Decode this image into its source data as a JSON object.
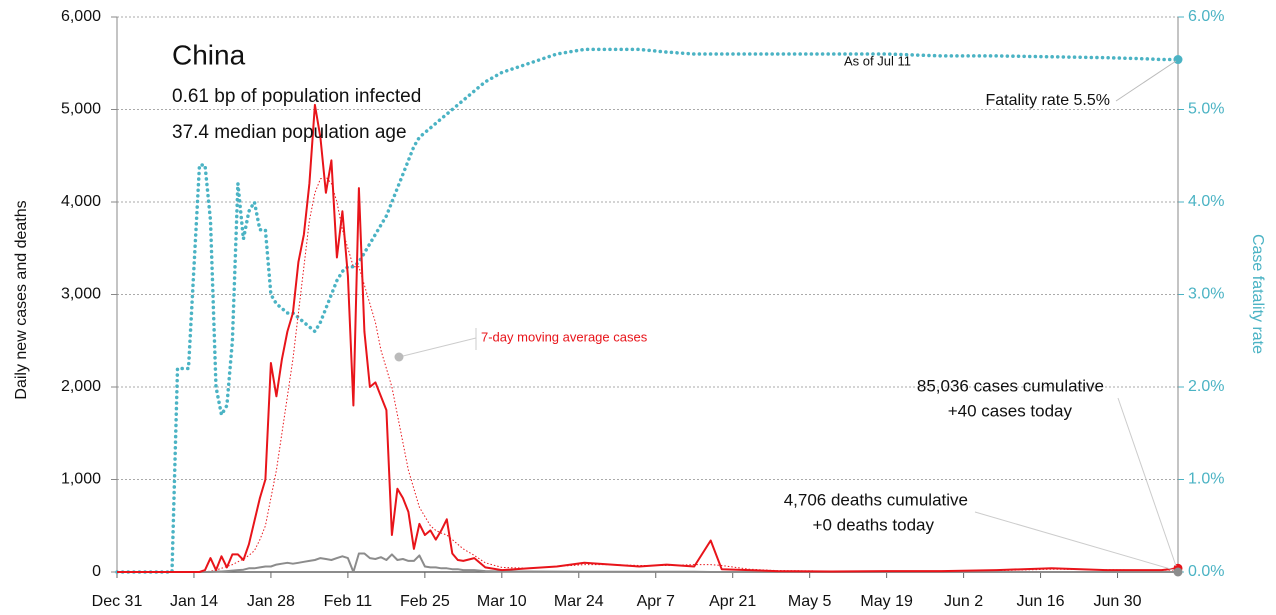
{
  "chart_data": {
    "type": "line",
    "title": "China",
    "annotations": [
      "0.61 bp of population infected",
      "37.4 median population age",
      "As of Jul 11",
      "Fatality rate 5.5%",
      "7-day moving average cases",
      "85,036 cases cumulative",
      "+40 cases today",
      "4,706 deaths cumulative",
      "+0 deaths today"
    ],
    "ylabel": "Daily new cases and deaths",
    "y2label": "Case fatality rate",
    "x": [
      0,
      5,
      10,
      11,
      13,
      15,
      16,
      17,
      18,
      19,
      20,
      21,
      22,
      23,
      24,
      25,
      26,
      27,
      28,
      29,
      30,
      31,
      32,
      33,
      34,
      35,
      36,
      37,
      38,
      39,
      40,
      41,
      42,
      43,
      44,
      45,
      46,
      47,
      48,
      49,
      50,
      51,
      52,
      53,
      54,
      55,
      56,
      57,
      58,
      59,
      60,
      61,
      62,
      63,
      65,
      67,
      70,
      75,
      80,
      85,
      90,
      95,
      100,
      105,
      108,
      110,
      115,
      120,
      130,
      140,
      150,
      160,
      170,
      180,
      186,
      190,
      193
    ],
    "series": [
      {
        "color": "#e8141a",
        "style": "solid",
        "values": [
          0,
          0,
          0,
          0,
          0,
          0,
          20,
          150,
          20,
          170,
          50,
          190,
          190,
          130,
          300,
          550,
          800,
          1000,
          2260,
          1900,
          2300,
          2600,
          2800,
          3350,
          3650,
          4200,
          5050,
          4700,
          4100,
          4450,
          3400,
          3900,
          3200,
          1800,
          4150,
          2600,
          2000,
          2050,
          1900,
          1750,
          400,
          900,
          800,
          650,
          250,
          520,
          400,
          450,
          350,
          450,
          570,
          200,
          130,
          120,
          150,
          50,
          20,
          40,
          60,
          100,
          80,
          60,
          80,
          60,
          340,
          30,
          20,
          10,
          5,
          10,
          10,
          20,
          40,
          20,
          20,
          20,
          40
        ]
      },
      {
        "color": "#e8141a",
        "style": "dotted",
        "values": [
          0,
          0,
          0,
          0,
          0,
          0,
          0,
          10,
          20,
          40,
          60,
          80,
          110,
          140,
          180,
          230,
          350,
          500,
          800,
          1100,
          1500,
          1900,
          2300,
          2800,
          3300,
          3800,
          4100,
          4250,
          4270,
          4200,
          4000,
          3700,
          3500,
          3300,
          3300,
          3100,
          2900,
          2700,
          2400,
          2200,
          2000,
          1700,
          1400,
          1100,
          900,
          700,
          600,
          500,
          450,
          420,
          400,
          350,
          300,
          250,
          180,
          100,
          50,
          40,
          60,
          80,
          80,
          70,
          70,
          80,
          80,
          70,
          30,
          15,
          10,
          10,
          10,
          15,
          30,
          25,
          20,
          20,
          20
        ]
      },
      {
        "color": "#8c8c8c",
        "style": "solid",
        "values": [
          0,
          0,
          0,
          0,
          0,
          0,
          0,
          0,
          5,
          5,
          10,
          15,
          20,
          25,
          40,
          40,
          50,
          60,
          60,
          80,
          90,
          100,
          90,
          100,
          110,
          120,
          130,
          150,
          140,
          130,
          150,
          170,
          150,
          0,
          200,
          200,
          150,
          140,
          160,
          130,
          190,
          130,
          140,
          120,
          120,
          180,
          60,
          50,
          50,
          40,
          40,
          30,
          30,
          20,
          20,
          10,
          5,
          5,
          4,
          3,
          2,
          2,
          2,
          2,
          0,
          0,
          0,
          0,
          0,
          0,
          0,
          0,
          0,
          0,
          0,
          0,
          0
        ]
      },
      {
        "color": "#4bb3c4",
        "style": "dots",
        "axis": "y2",
        "values": [
          0,
          0,
          0,
          2.2,
          2.2,
          4.4,
          4.4,
          3.8,
          2.0,
          1.7,
          1.8,
          2.5,
          4.2,
          3.6,
          3.9,
          4.0,
          3.7,
          3.7,
          3.0,
          2.9,
          2.85,
          2.8,
          2.8,
          2.75,
          2.7,
          2.65,
          2.6,
          2.7,
          2.85,
          3.0,
          3.15,
          3.25,
          3.3,
          3.3,
          3.35,
          3.45,
          3.55,
          3.65,
          3.75,
          3.85,
          4.0,
          4.15,
          4.3,
          4.45,
          4.6,
          4.7,
          4.75,
          4.8,
          4.85,
          4.9,
          4.95,
          5.0,
          5.05,
          5.1,
          5.2,
          5.3,
          5.4,
          5.5,
          5.6,
          5.65,
          5.65,
          5.65,
          5.62,
          5.6,
          5.6,
          5.6,
          5.6,
          5.6,
          5.6,
          5.6,
          5.58,
          5.58,
          5.57,
          5.56,
          5.55,
          5.54,
          5.54
        ]
      }
    ],
    "xlim": [
      0,
      193
    ],
    "xticks": [
      {
        "value": 0,
        "label": "Dec 31"
      },
      {
        "value": 14,
        "label": "Jan 14"
      },
      {
        "value": 28,
        "label": "Jan 28"
      },
      {
        "value": 42,
        "label": "Feb 11"
      },
      {
        "value": 56,
        "label": "Feb 25"
      },
      {
        "value": 70,
        "label": "Mar 10"
      },
      {
        "value": 84,
        "label": "Mar 24"
      },
      {
        "value": 98,
        "label": "Apr 7"
      },
      {
        "value": 112,
        "label": "Apr 21"
      },
      {
        "value": 126,
        "label": "May 5"
      },
      {
        "value": 140,
        "label": "May 19"
      },
      {
        "value": 154,
        "label": "Jun 2"
      },
      {
        "value": 168,
        "label": "Jun 16"
      },
      {
        "value": 182,
        "label": "Jun 30"
      }
    ],
    "ylim": [
      0,
      6000
    ],
    "yticks": [
      0,
      {
        "value": 1000,
        "label": "1,000"
      },
      {
        "value": 2000,
        "label": "2,000"
      },
      {
        "value": 3000,
        "label": "3,000"
      },
      {
        "value": 4000,
        "label": "4,000"
      },
      {
        "value": 5000,
        "label": "5,000"
      },
      {
        "value": 6000,
        "label": "6,000"
      }
    ],
    "y2lim": [
      0,
      6
    ],
    "y2ticks": [
      {
        "value": 0,
        "label": "0.0%"
      },
      {
        "value": 1,
        "label": "1.0%"
      },
      {
        "value": 2,
        "label": "2.0%"
      },
      {
        "value": 3,
        "label": "3.0%"
      },
      {
        "value": 4,
        "label": "4.0%"
      },
      {
        "value": 5,
        "label": "5.0%"
      },
      {
        "value": 6,
        "label": "6.0%"
      }
    ],
    "grid": true
  }
}
